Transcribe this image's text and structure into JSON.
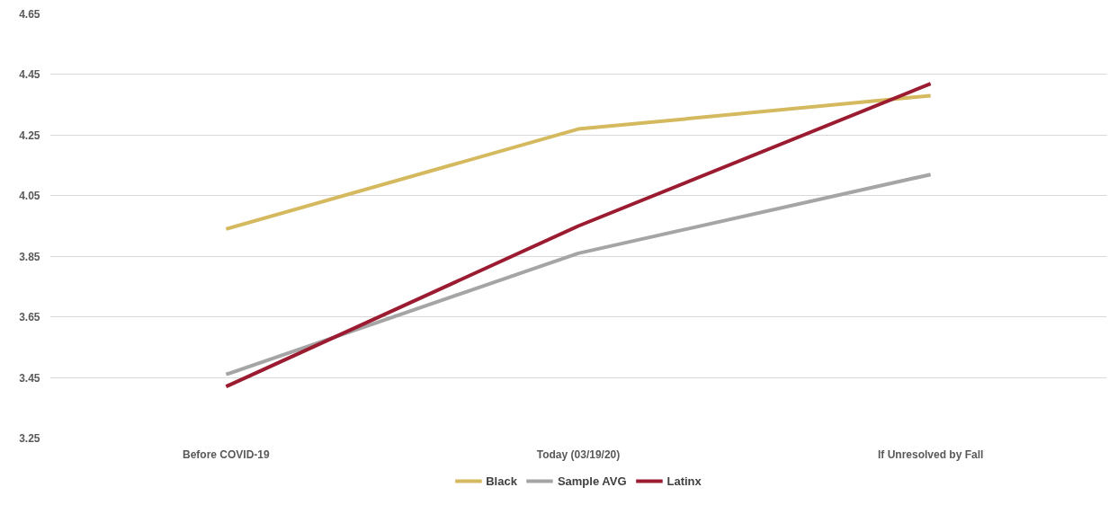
{
  "chart_data": {
    "type": "line",
    "categories": [
      "Before COVID-19",
      "Today (03/19/20)",
      "If Unresolved by Fall"
    ],
    "series": [
      {
        "name": "Black",
        "color": "#d4b95e",
        "values": [
          3.94,
          4.27,
          4.38
        ]
      },
      {
        "name": "Sample AVG",
        "color": "#a5a5a5",
        "values": [
          3.46,
          3.86,
          4.12
        ]
      },
      {
        "name": "Latinx",
        "color": "#9b1b30",
        "values": [
          3.42,
          3.95,
          4.42
        ]
      }
    ],
    "ylim": [
      3.25,
      4.65
    ],
    "yticks": [
      3.25,
      3.45,
      3.65,
      3.85,
      4.05,
      4.25,
      4.45,
      4.65
    ],
    "grid": "y",
    "legend": "bottom",
    "marker": "none",
    "line_style": "solid"
  }
}
